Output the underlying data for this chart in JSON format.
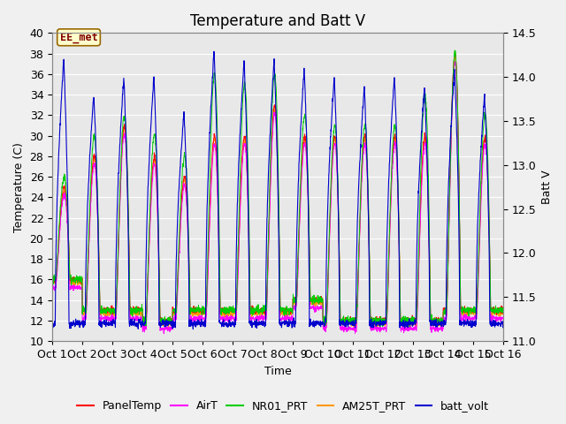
{
  "title": "Temperature and Batt V",
  "xlabel": "Time",
  "ylabel_left": "Temperature (C)",
  "ylabel_right": "Batt V",
  "ylim_left": [
    10,
    40
  ],
  "ylim_right": [
    11.0,
    14.5
  ],
  "xlim": [
    0,
    15
  ],
  "xtick_labels": [
    "Oct 1",
    "Oct 2",
    "Oct 3",
    "Oct 4",
    "Oct 5",
    "Oct 6",
    "Oct 7",
    "Oct 8",
    "Oct 9",
    "Oct 10",
    "Oct 11",
    "Oct 12",
    "Oct 13",
    "Oct 14",
    "Oct 15",
    "Oct 16"
  ],
  "series_colors": {
    "PanelTemp": "#ff0000",
    "AirT": "#ff00ff",
    "NR01_PRT": "#00cc00",
    "AM25T_PRT": "#ff9900",
    "batt_volt": "#0000cc"
  },
  "annotation_text": "EE_met",
  "annotation_bg": "#ffffcc",
  "annotation_edge": "#996600",
  "annotation_color": "#800000",
  "plot_bg_color": "#e8e8e8",
  "grid_color": "#ffffff",
  "title_fontsize": 12,
  "axis_fontsize": 9,
  "tick_fontsize": 9,
  "legend_fontsize": 9,
  "day_maxes_temp": [
    25,
    28,
    31,
    28,
    26,
    30,
    30,
    33,
    30,
    30,
    30,
    30,
    30,
    38,
    30
  ],
  "day_mins_temp": [
    16,
    13,
    13,
    12,
    13,
    13,
    13,
    13,
    14,
    12,
    12,
    12,
    12,
    13,
    13
  ],
  "day_maxes_nr01": [
    26,
    30,
    32,
    30,
    28,
    36,
    35,
    36,
    32,
    31,
    31,
    31,
    34,
    38,
    32
  ],
  "day_maxes_batt": [
    14.2,
    13.8,
    14.0,
    14.0,
    13.6,
    14.3,
    14.2,
    14.2,
    14.1,
    14.0,
    13.9,
    14.0,
    13.9,
    14.1,
    13.8
  ],
  "day_mins_batt": [
    11.2,
    11.2,
    11.2,
    11.2,
    11.2,
    11.2,
    11.2,
    11.2,
    11.2,
    11.2,
    11.2,
    11.2,
    11.2,
    11.2,
    11.2
  ]
}
